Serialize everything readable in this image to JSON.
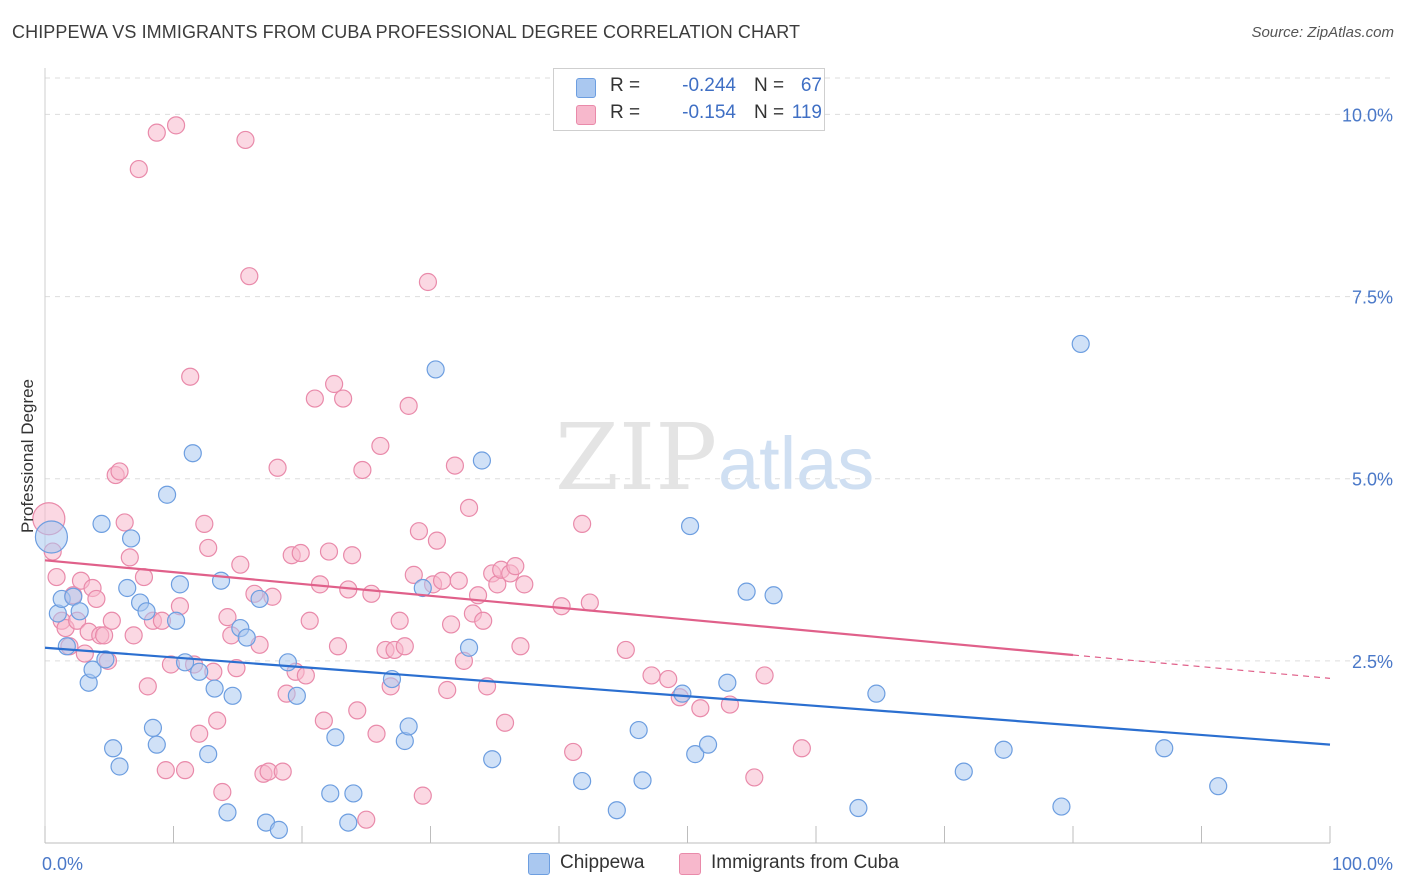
{
  "header": {
    "title": "CHIPPEWA VS IMMIGRANTS FROM CUBA PROFESSIONAL DEGREE CORRELATION CHART",
    "source": "Source: ZipAtlas.com"
  },
  "watermark": {
    "zip": "ZIP",
    "atlas": "atlas"
  },
  "legend": {
    "rows": [
      {
        "r_label": "R =",
        "r_value": "-0.244",
        "n_label": "N =",
        "n_value": "67"
      },
      {
        "r_label": "R =",
        "r_value": "-0.154",
        "n_label": "N =",
        "n_value": "119"
      }
    ],
    "bottom": [
      "Chippewa",
      "Immigrants from Cuba"
    ]
  },
  "colors": {
    "chippewa_fill": "#aac8f0",
    "chippewa_stroke": "#6d9ee0",
    "chippewa_line": "#2b6fd0",
    "cuba_fill": "#f7b8cc",
    "cuba_stroke": "#e98aaa",
    "cuba_line": "#e0608a",
    "grid": "#dddddd",
    "axis_label": "#4a78c8"
  },
  "chart_data": {
    "type": "scatter",
    "title": "CHIPPEWA VS IMMIGRANTS FROM CUBA PROFESSIONAL DEGREE CORRELATION CHART",
    "xlabel": "",
    "ylabel": "Professional Degree",
    "xlim": [
      0,
      100
    ],
    "ylim": [
      0,
      10.5
    ],
    "x_tick_labels": [
      "0.0%",
      "100.0%"
    ],
    "y_ticks": [
      2.5,
      5.0,
      7.5,
      10.0
    ],
    "y_tick_labels": [
      "2.5%",
      "5.0%",
      "7.5%",
      "10.0%"
    ],
    "grid": true,
    "series": [
      {
        "name": "Chippewa",
        "R": -0.244,
        "N": 67,
        "trend": {
          "x0": 0,
          "y0": 2.68,
          "x1": 100,
          "y1": 1.35
        },
        "points": [
          [
            0.5,
            4.2
          ],
          [
            1.0,
            3.15
          ],
          [
            1.3,
            3.35
          ],
          [
            1.7,
            2.7
          ],
          [
            2.2,
            3.38
          ],
          [
            2.7,
            3.18
          ],
          [
            3.4,
            2.2
          ],
          [
            3.7,
            2.38
          ],
          [
            4.4,
            4.38
          ],
          [
            4.7,
            2.52
          ],
          [
            5.3,
            1.3
          ],
          [
            5.8,
            1.05
          ],
          [
            6.4,
            3.5
          ],
          [
            6.7,
            4.18
          ],
          [
            7.4,
            3.3
          ],
          [
            7.9,
            3.18
          ],
          [
            8.4,
            1.58
          ],
          [
            8.7,
            1.35
          ],
          [
            9.5,
            4.78
          ],
          [
            10.2,
            3.05
          ],
          [
            10.5,
            3.55
          ],
          [
            10.9,
            2.48
          ],
          [
            11.5,
            5.35
          ],
          [
            12.0,
            2.35
          ],
          [
            12.7,
            1.22
          ],
          [
            13.2,
            2.12
          ],
          [
            13.7,
            3.6
          ],
          [
            14.2,
            0.42
          ],
          [
            14.6,
            2.02
          ],
          [
            15.2,
            2.95
          ],
          [
            15.7,
            2.82
          ],
          [
            16.7,
            3.35
          ],
          [
            17.2,
            0.28
          ],
          [
            18.2,
            0.18
          ],
          [
            18.9,
            2.48
          ],
          [
            19.6,
            2.02
          ],
          [
            22.2,
            0.68
          ],
          [
            22.6,
            1.45
          ],
          [
            23.6,
            0.28
          ],
          [
            24.0,
            0.68
          ],
          [
            27.0,
            2.25
          ],
          [
            28.0,
            1.4
          ],
          [
            28.3,
            1.6
          ],
          [
            29.4,
            3.5
          ],
          [
            30.4,
            6.5
          ],
          [
            33.0,
            2.68
          ],
          [
            34.0,
            5.25
          ],
          [
            34.8,
            1.15
          ],
          [
            41.8,
            0.85
          ],
          [
            44.5,
            0.45
          ],
          [
            46.2,
            1.55
          ],
          [
            46.5,
            0.86
          ],
          [
            49.6,
            2.05
          ],
          [
            50.2,
            4.35
          ],
          [
            50.6,
            1.22
          ],
          [
            51.6,
            1.35
          ],
          [
            53.1,
            2.2
          ],
          [
            54.6,
            3.45
          ],
          [
            56.7,
            3.4
          ],
          [
            63.3,
            0.48
          ],
          [
            64.7,
            2.05
          ],
          [
            71.5,
            0.98
          ],
          [
            74.6,
            1.28
          ],
          [
            79.1,
            0.5
          ],
          [
            80.6,
            6.85
          ],
          [
            87.1,
            1.3
          ],
          [
            91.3,
            0.78
          ]
        ]
      },
      {
        "name": "Immigrants from Cuba",
        "R": -0.154,
        "N": 119,
        "trend": {
          "x0": 0,
          "y0": 3.88,
          "x1": 80,
          "y1": 2.58
        },
        "trend_ext": {
          "x0": 80,
          "y0": 2.58,
          "x1": 100,
          "y1": 2.26
        },
        "points": [
          [
            0.3,
            4.45
          ],
          [
            0.6,
            4.0
          ],
          [
            0.9,
            3.65
          ],
          [
            1.3,
            3.05
          ],
          [
            1.6,
            2.95
          ],
          [
            1.9,
            2.7
          ],
          [
            2.2,
            3.4
          ],
          [
            2.5,
            3.05
          ],
          [
            2.8,
            3.6
          ],
          [
            3.1,
            2.6
          ],
          [
            3.4,
            2.9
          ],
          [
            3.7,
            3.5
          ],
          [
            4.0,
            3.35
          ],
          [
            4.3,
            2.85
          ],
          [
            4.6,
            2.85
          ],
          [
            4.9,
            2.5
          ],
          [
            5.2,
            3.05
          ],
          [
            5.5,
            5.05
          ],
          [
            5.8,
            5.1
          ],
          [
            6.2,
            4.4
          ],
          [
            6.6,
            3.92
          ],
          [
            6.9,
            2.85
          ],
          [
            7.3,
            9.25
          ],
          [
            7.7,
            3.65
          ],
          [
            8.0,
            2.15
          ],
          [
            8.4,
            3.05
          ],
          [
            8.7,
            9.75
          ],
          [
            9.1,
            3.05
          ],
          [
            9.4,
            1.0
          ],
          [
            9.8,
            2.45
          ],
          [
            10.2,
            9.85
          ],
          [
            10.5,
            3.25
          ],
          [
            10.9,
            1.0
          ],
          [
            11.3,
            6.4
          ],
          [
            11.6,
            2.45
          ],
          [
            12.0,
            1.5
          ],
          [
            12.4,
            4.38
          ],
          [
            12.7,
            4.05
          ],
          [
            13.1,
            2.35
          ],
          [
            13.4,
            1.68
          ],
          [
            13.8,
            0.7
          ],
          [
            14.2,
            3.1
          ],
          [
            14.5,
            2.85
          ],
          [
            14.9,
            2.4
          ],
          [
            15.2,
            3.82
          ],
          [
            15.6,
            9.65
          ],
          [
            15.9,
            7.78
          ],
          [
            16.3,
            3.42
          ],
          [
            16.7,
            2.72
          ],
          [
            17.0,
            0.95
          ],
          [
            17.4,
            0.98
          ],
          [
            17.7,
            3.38
          ],
          [
            18.1,
            5.15
          ],
          [
            18.5,
            0.98
          ],
          [
            18.8,
            2.05
          ],
          [
            19.2,
            3.95
          ],
          [
            19.5,
            2.35
          ],
          [
            19.9,
            3.98
          ],
          [
            20.3,
            2.3
          ],
          [
            20.6,
            3.05
          ],
          [
            21.0,
            6.1
          ],
          [
            21.4,
            3.55
          ],
          [
            21.7,
            1.68
          ],
          [
            22.1,
            4.0
          ],
          [
            22.5,
            6.3
          ],
          [
            22.8,
            2.7
          ],
          [
            23.2,
            6.1
          ],
          [
            23.6,
            3.48
          ],
          [
            23.9,
            3.95
          ],
          [
            24.3,
            1.82
          ],
          [
            24.7,
            5.12
          ],
          [
            25.0,
            0.32
          ],
          [
            25.4,
            3.42
          ],
          [
            25.8,
            1.5
          ],
          [
            26.1,
            5.45
          ],
          [
            26.5,
            2.65
          ],
          [
            26.9,
            2.15
          ],
          [
            27.2,
            2.65
          ],
          [
            27.6,
            3.05
          ],
          [
            28.0,
            2.7
          ],
          [
            28.3,
            6.0
          ],
          [
            28.7,
            3.68
          ],
          [
            29.1,
            4.28
          ],
          [
            29.4,
            0.65
          ],
          [
            29.8,
            7.7
          ],
          [
            30.2,
            3.55
          ],
          [
            30.5,
            4.15
          ],
          [
            30.9,
            3.6
          ],
          [
            31.3,
            2.1
          ],
          [
            31.6,
            3.0
          ],
          [
            31.9,
            5.18
          ],
          [
            32.2,
            3.6
          ],
          [
            32.6,
            2.5
          ],
          [
            33.0,
            4.6
          ],
          [
            33.3,
            3.15
          ],
          [
            33.7,
            3.4
          ],
          [
            34.1,
            3.05
          ],
          [
            34.4,
            2.15
          ],
          [
            34.8,
            3.7
          ],
          [
            35.2,
            3.55
          ],
          [
            35.5,
            3.75
          ],
          [
            35.8,
            1.65
          ],
          [
            36.2,
            3.7
          ],
          [
            36.6,
            3.8
          ],
          [
            37.0,
            2.7
          ],
          [
            37.3,
            3.55
          ],
          [
            40.2,
            3.25
          ],
          [
            41.1,
            1.25
          ],
          [
            41.8,
            4.38
          ],
          [
            42.4,
            3.3
          ],
          [
            45.2,
            2.65
          ],
          [
            47.2,
            2.3
          ],
          [
            48.5,
            2.25
          ],
          [
            49.4,
            2.0
          ],
          [
            51.0,
            1.85
          ],
          [
            53.3,
            1.9
          ],
          [
            55.2,
            0.9
          ],
          [
            56.0,
            2.3
          ],
          [
            58.9,
            1.3
          ]
        ]
      }
    ]
  }
}
